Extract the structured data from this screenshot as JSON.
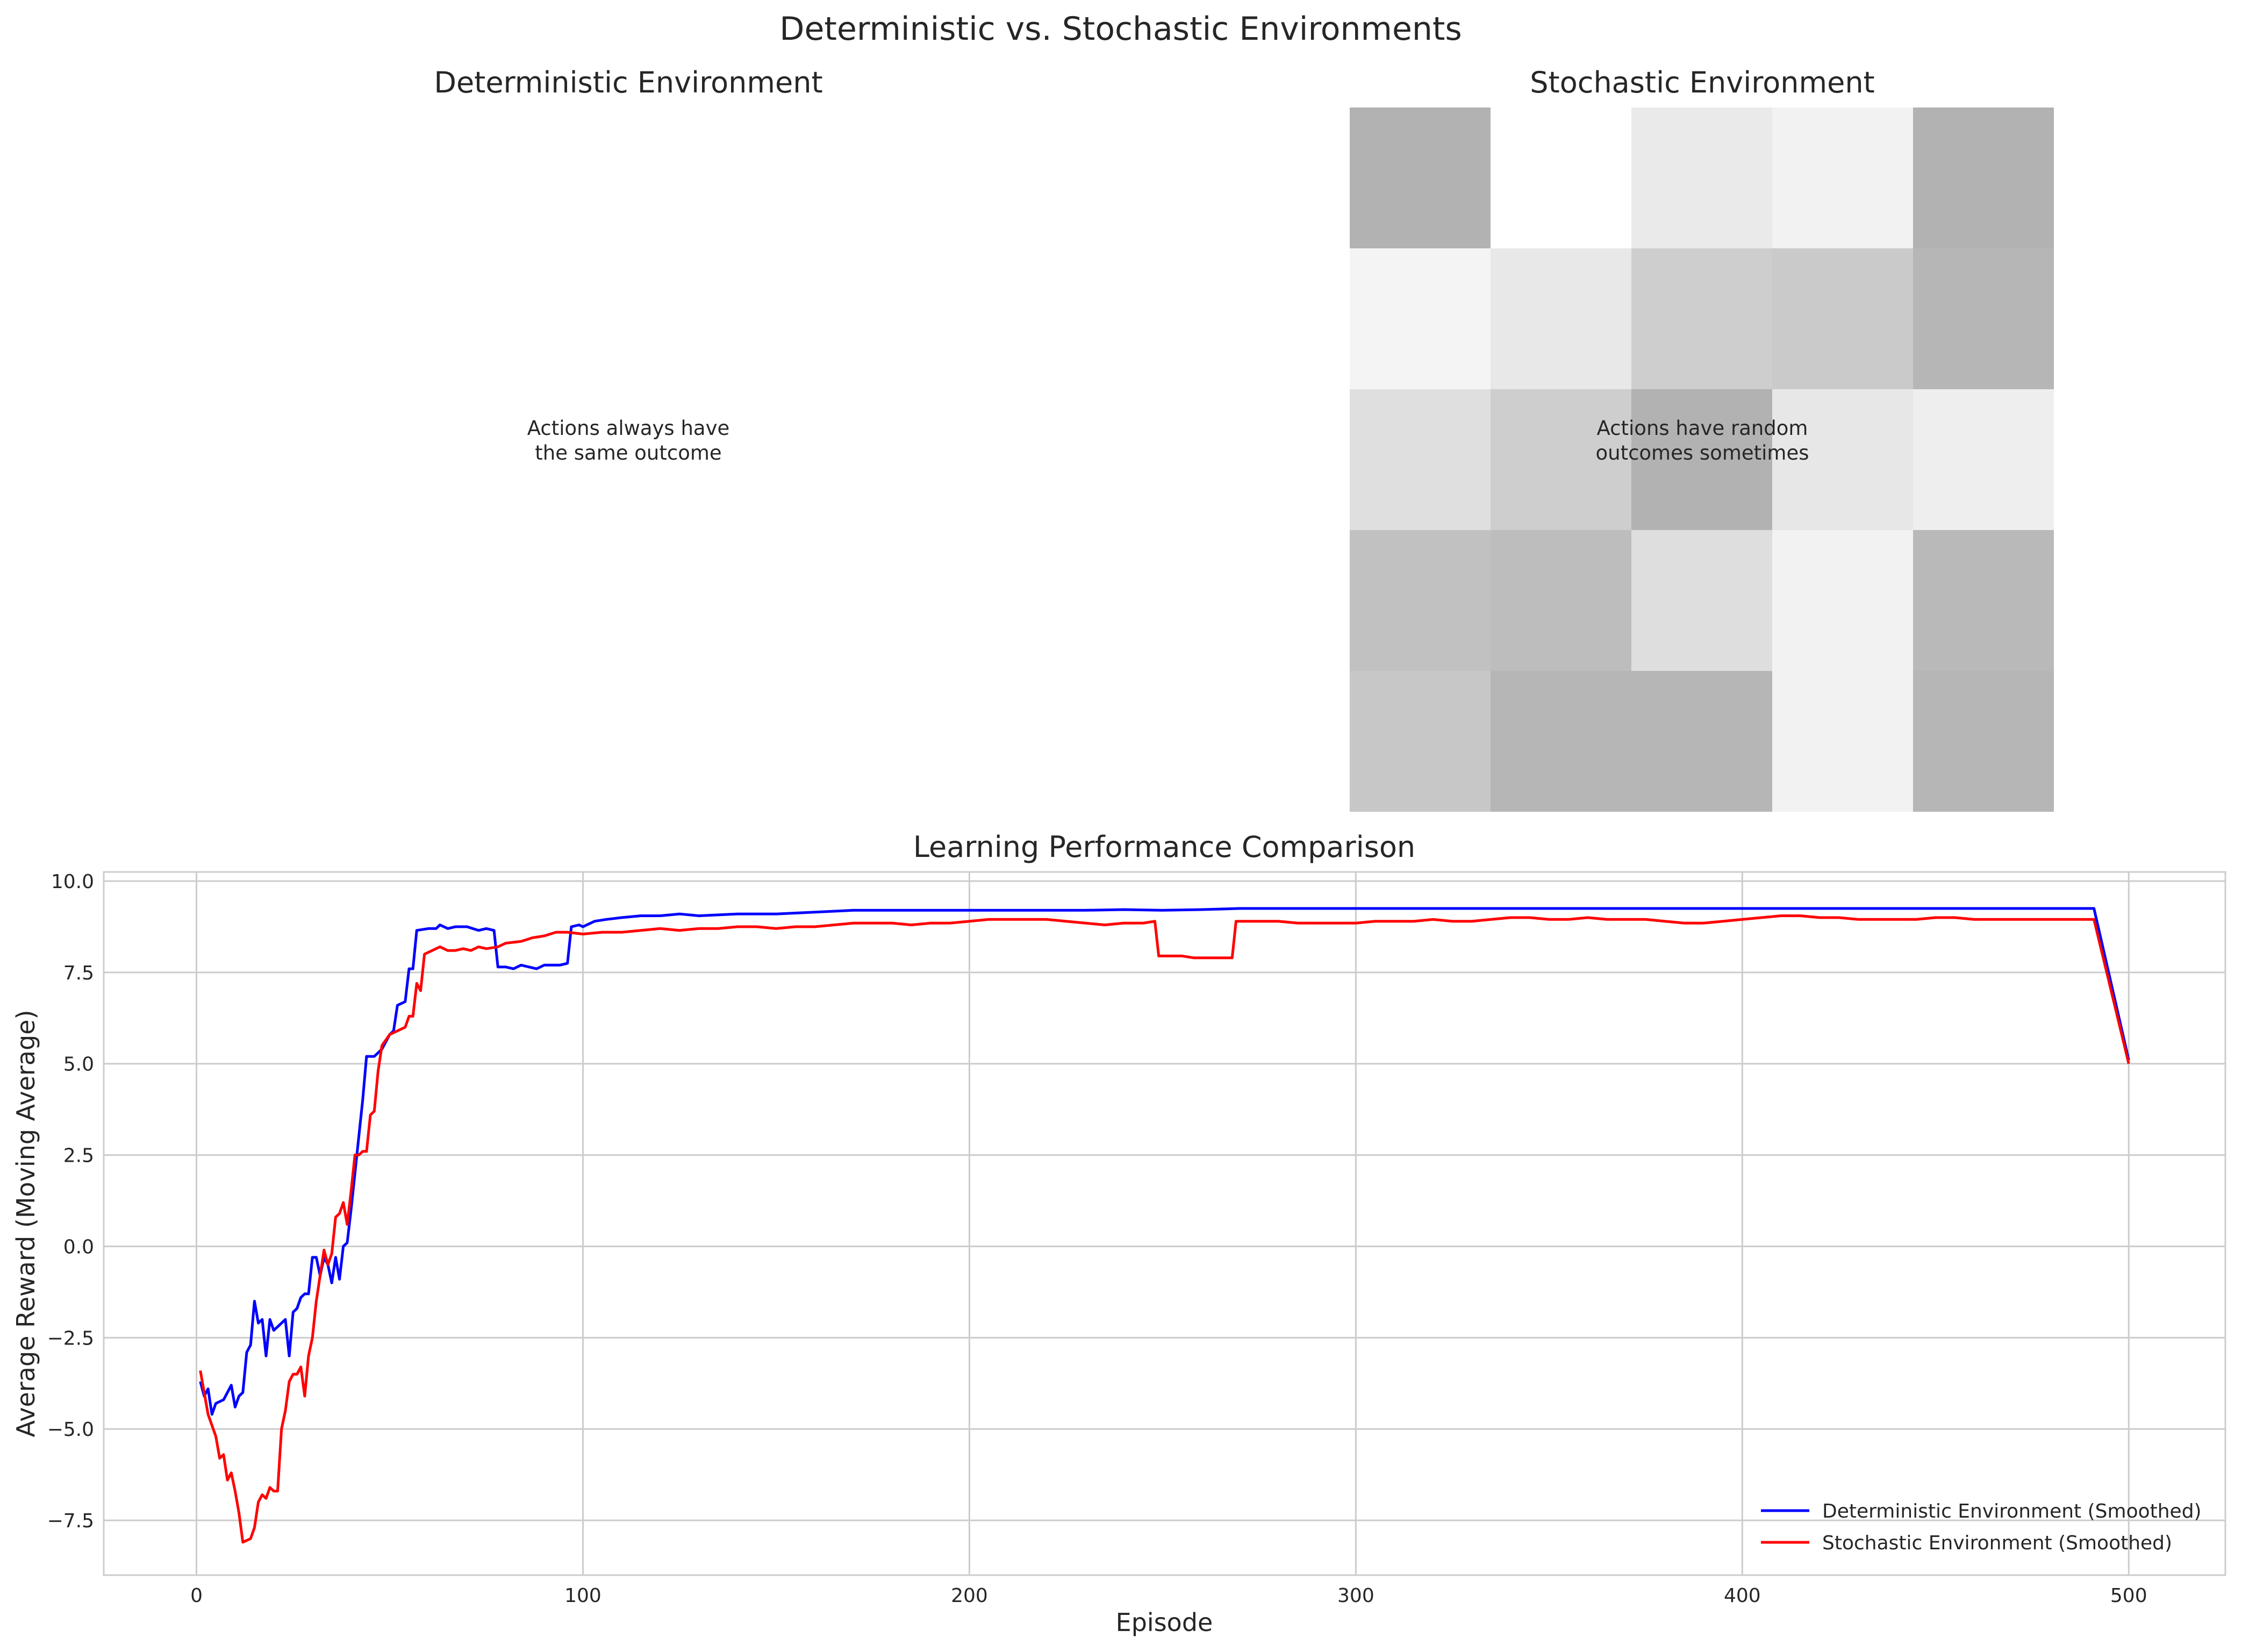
{
  "figure": {
    "suptitle": "Deterministic vs. Stochastic Environments"
  },
  "panels": {
    "deterministic": {
      "title": "Deterministic Environment",
      "annotation_line1": "Actions always have",
      "annotation_line2": "the same outcome"
    },
    "stochastic": {
      "title": "Stochastic Environment",
      "annotation_line1": "Actions have random",
      "annotation_line2": "outcomes sometimes"
    }
  },
  "chart_data": [
    {
      "type": "heatmap",
      "title": "Stochastic Environment",
      "colormap": "gray (white = low, gray = high)",
      "grid": [
        [
          0.58,
          0.0,
          0.16,
          0.1,
          0.58
        ],
        [
          0.08,
          0.17,
          0.37,
          0.4,
          0.55
        ],
        [
          0.24,
          0.37,
          0.58,
          0.18,
          0.13
        ],
        [
          0.47,
          0.5,
          0.25,
          0.1,
          0.53
        ],
        [
          0.42,
          0.55,
          0.55,
          0.1,
          0.55
        ]
      ]
    },
    {
      "type": "line",
      "title": "Learning Performance Comparison",
      "xlabel": "Episode",
      "ylabel": "Average Reward (Moving Average)",
      "xlim": [
        -24,
        525
      ],
      "ylim": [
        -9.0,
        10.25
      ],
      "xticks": [
        0,
        100,
        200,
        300,
        400,
        500
      ],
      "yticks": [
        -7.5,
        -5.0,
        -2.5,
        0.0,
        2.5,
        5.0,
        7.5,
        10.0
      ],
      "ytick_labels": [
        "−7.5",
        "−5.0",
        "−2.5",
        "0.0",
        "2.5",
        "5.0",
        "7.5",
        "10.0"
      ],
      "grid": true,
      "legend_position": "bottom-right",
      "series": [
        {
          "name": "Deterministic Environment (Smoothed)",
          "color": "#0000ff",
          "points": [
            [
              1,
              -3.7
            ],
            [
              2,
              -4.1
            ],
            [
              3,
              -3.9
            ],
            [
              4,
              -4.6
            ],
            [
              5,
              -4.3
            ],
            [
              7,
              -4.2
            ],
            [
              8,
              -4.0
            ],
            [
              9,
              -3.8
            ],
            [
              10,
              -4.4
            ],
            [
              11,
              -4.1
            ],
            [
              12,
              -4.0
            ],
            [
              13,
              -2.9
            ],
            [
              14,
              -2.7
            ],
            [
              15,
              -1.5
            ],
            [
              16,
              -2.1
            ],
            [
              17,
              -2.0
            ],
            [
              18,
              -3.0
            ],
            [
              19,
              -2.0
            ],
            [
              20,
              -2.3
            ],
            [
              21,
              -2.2
            ],
            [
              22,
              -2.1
            ],
            [
              23,
              -2.0
            ],
            [
              24,
              -3.0
            ],
            [
              25,
              -1.8
            ],
            [
              26,
              -1.7
            ],
            [
              27,
              -1.4
            ],
            [
              28,
              -1.3
            ],
            [
              29,
              -1.3
            ],
            [
              30,
              -0.3
            ],
            [
              31,
              -0.3
            ],
            [
              32,
              -0.8
            ],
            [
              33,
              -0.3
            ],
            [
              34,
              -0.5
            ],
            [
              35,
              -1.0
            ],
            [
              36,
              -0.3
            ],
            [
              37,
              -0.9
            ],
            [
              38,
              0.0
            ],
            [
              39,
              0.1
            ],
            [
              40,
              1.0
            ],
            [
              41,
              2.0
            ],
            [
              42,
              3.0
            ],
            [
              43,
              4.0
            ],
            [
              44,
              5.2
            ],
            [
              46,
              5.2
            ],
            [
              48,
              5.4
            ],
            [
              50,
              5.8
            ],
            [
              51,
              5.9
            ],
            [
              52,
              6.6
            ],
            [
              54,
              6.7
            ],
            [
              55,
              7.6
            ],
            [
              56,
              7.6
            ],
            [
              57,
              8.65
            ],
            [
              60,
              8.7
            ],
            [
              62,
              8.7
            ],
            [
              63,
              8.8
            ],
            [
              65,
              8.7
            ],
            [
              67,
              8.75
            ],
            [
              70,
              8.75
            ],
            [
              73,
              8.65
            ],
            [
              75,
              8.7
            ],
            [
              77,
              8.65
            ],
            [
              78,
              7.65
            ],
            [
              80,
              7.65
            ],
            [
              82,
              7.6
            ],
            [
              84,
              7.7
            ],
            [
              86,
              7.65
            ],
            [
              88,
              7.6
            ],
            [
              90,
              7.7
            ],
            [
              92,
              7.7
            ],
            [
              94,
              7.7
            ],
            [
              96,
              7.75
            ],
            [
              97,
              8.75
            ],
            [
              99,
              8.8
            ],
            [
              100,
              8.75
            ],
            [
              103,
              8.9
            ],
            [
              106,
              8.95
            ],
            [
              110,
              9.0
            ],
            [
              115,
              9.05
            ],
            [
              120,
              9.05
            ],
            [
              125,
              9.1
            ],
            [
              130,
              9.05
            ],
            [
              140,
              9.1
            ],
            [
              150,
              9.1
            ],
            [
              160,
              9.15
            ],
            [
              170,
              9.2
            ],
            [
              180,
              9.2
            ],
            [
              190,
              9.2
            ],
            [
              200,
              9.2
            ],
            [
              210,
              9.2
            ],
            [
              220,
              9.2
            ],
            [
              230,
              9.2
            ],
            [
              240,
              9.22
            ],
            [
              250,
              9.2
            ],
            [
              260,
              9.22
            ],
            [
              270,
              9.25
            ],
            [
              280,
              9.25
            ],
            [
              290,
              9.25
            ],
            [
              300,
              9.25
            ],
            [
              320,
              9.25
            ],
            [
              340,
              9.25
            ],
            [
              360,
              9.25
            ],
            [
              380,
              9.25
            ],
            [
              400,
              9.25
            ],
            [
              420,
              9.25
            ],
            [
              440,
              9.25
            ],
            [
              460,
              9.25
            ],
            [
              480,
              9.25
            ],
            [
              491,
              9.25
            ],
            [
              500,
              5.1
            ]
          ]
        },
        {
          "name": "Stochastic Environment (Smoothed)",
          "color": "#ff0000",
          "points": [
            [
              1,
              -3.4
            ],
            [
              2,
              -4.0
            ],
            [
              3,
              -4.6
            ],
            [
              5,
              -5.2
            ],
            [
              6,
              -5.8
            ],
            [
              7,
              -5.7
            ],
            [
              8,
              -6.4
            ],
            [
              9,
              -6.2
            ],
            [
              10,
              -6.7
            ],
            [
              11,
              -7.3
            ],
            [
              12,
              -8.1
            ],
            [
              14,
              -8.0
            ],
            [
              15,
              -7.7
            ],
            [
              16,
              -7.0
            ],
            [
              17,
              -6.8
            ],
            [
              18,
              -6.9
            ],
            [
              19,
              -6.6
            ],
            [
              20,
              -6.7
            ],
            [
              21,
              -6.7
            ],
            [
              22,
              -5.0
            ],
            [
              23,
              -4.5
            ],
            [
              24,
              -3.7
            ],
            [
              25,
              -3.5
            ],
            [
              26,
              -3.5
            ],
            [
              27,
              -3.3
            ],
            [
              28,
              -4.1
            ],
            [
              29,
              -3.0
            ],
            [
              30,
              -2.5
            ],
            [
              31,
              -1.5
            ],
            [
              32,
              -0.8
            ],
            [
              33,
              -0.1
            ],
            [
              34,
              -0.5
            ],
            [
              35,
              -0.2
            ],
            [
              36,
              0.8
            ],
            [
              37,
              0.9
            ],
            [
              38,
              1.2
            ],
            [
              39,
              0.6
            ],
            [
              40,
              1.5
            ],
            [
              41,
              2.5
            ],
            [
              42,
              2.5
            ],
            [
              43,
              2.6
            ],
            [
              44,
              2.6
            ],
            [
              45,
              3.6
            ],
            [
              46,
              3.7
            ],
            [
              47,
              4.8
            ],
            [
              48,
              5.5
            ],
            [
              50,
              5.8
            ],
            [
              52,
              5.9
            ],
            [
              54,
              6.0
            ],
            [
              55,
              6.3
            ],
            [
              56,
              6.3
            ],
            [
              57,
              7.2
            ],
            [
              58,
              7.0
            ],
            [
              59,
              8.0
            ],
            [
              61,
              8.1
            ],
            [
              63,
              8.2
            ],
            [
              65,
              8.1
            ],
            [
              67,
              8.1
            ],
            [
              69,
              8.15
            ],
            [
              71,
              8.1
            ],
            [
              73,
              8.2
            ],
            [
              75,
              8.15
            ],
            [
              78,
              8.2
            ],
            [
              80,
              8.3
            ],
            [
              84,
              8.35
            ],
            [
              87,
              8.45
            ],
            [
              90,
              8.5
            ],
            [
              93,
              8.6
            ],
            [
              96,
              8.6
            ],
            [
              100,
              8.55
            ],
            [
              105,
              8.6
            ],
            [
              110,
              8.6
            ],
            [
              115,
              8.65
            ],
            [
              120,
              8.7
            ],
            [
              125,
              8.65
            ],
            [
              130,
              8.7
            ],
            [
              135,
              8.7
            ],
            [
              140,
              8.75
            ],
            [
              145,
              8.75
            ],
            [
              150,
              8.7
            ],
            [
              155,
              8.75
            ],
            [
              160,
              8.75
            ],
            [
              165,
              8.8
            ],
            [
              170,
              8.85
            ],
            [
              175,
              8.85
            ],
            [
              180,
              8.85
            ],
            [
              185,
              8.8
            ],
            [
              190,
              8.85
            ],
            [
              195,
              8.85
            ],
            [
              200,
              8.9
            ],
            [
              205,
              8.95
            ],
            [
              210,
              8.95
            ],
            [
              215,
              8.95
            ],
            [
              220,
              8.95
            ],
            [
              225,
              8.9
            ],
            [
              230,
              8.85
            ],
            [
              235,
              8.8
            ],
            [
              240,
              8.85
            ],
            [
              245,
              8.85
            ],
            [
              248,
              8.9
            ],
            [
              249,
              7.95
            ],
            [
              252,
              7.95
            ],
            [
              255,
              7.95
            ],
            [
              258,
              7.9
            ],
            [
              262,
              7.9
            ],
            [
              265,
              7.9
            ],
            [
              268,
              7.9
            ],
            [
              269,
              8.9
            ],
            [
              275,
              8.9
            ],
            [
              280,
              8.9
            ],
            [
              285,
              8.85
            ],
            [
              290,
              8.85
            ],
            [
              295,
              8.85
            ],
            [
              300,
              8.85
            ],
            [
              305,
              8.9
            ],
            [
              310,
              8.9
            ],
            [
              315,
              8.9
            ],
            [
              320,
              8.95
            ],
            [
              325,
              8.9
            ],
            [
              330,
              8.9
            ],
            [
              335,
              8.95
            ],
            [
              340,
              9.0
            ],
            [
              345,
              9.0
            ],
            [
              350,
              8.95
            ],
            [
              355,
              8.95
            ],
            [
              360,
              9.0
            ],
            [
              365,
              8.95
            ],
            [
              370,
              8.95
            ],
            [
              375,
              8.95
            ],
            [
              380,
              8.9
            ],
            [
              385,
              8.85
            ],
            [
              390,
              8.85
            ],
            [
              395,
              8.9
            ],
            [
              400,
              8.95
            ],
            [
              405,
              9.0
            ],
            [
              410,
              9.05
            ],
            [
              415,
              9.05
            ],
            [
              420,
              9.0
            ],
            [
              425,
              9.0
            ],
            [
              430,
              8.95
            ],
            [
              435,
              8.95
            ],
            [
              440,
              8.95
            ],
            [
              445,
              8.95
            ],
            [
              450,
              9.0
            ],
            [
              455,
              9.0
            ],
            [
              460,
              8.95
            ],
            [
              465,
              8.95
            ],
            [
              470,
              8.95
            ],
            [
              475,
              8.95
            ],
            [
              480,
              8.95
            ],
            [
              485,
              8.95
            ],
            [
              490,
              8.95
            ],
            [
              491,
              8.95
            ],
            [
              500,
              5.0
            ]
          ]
        }
      ]
    }
  ]
}
